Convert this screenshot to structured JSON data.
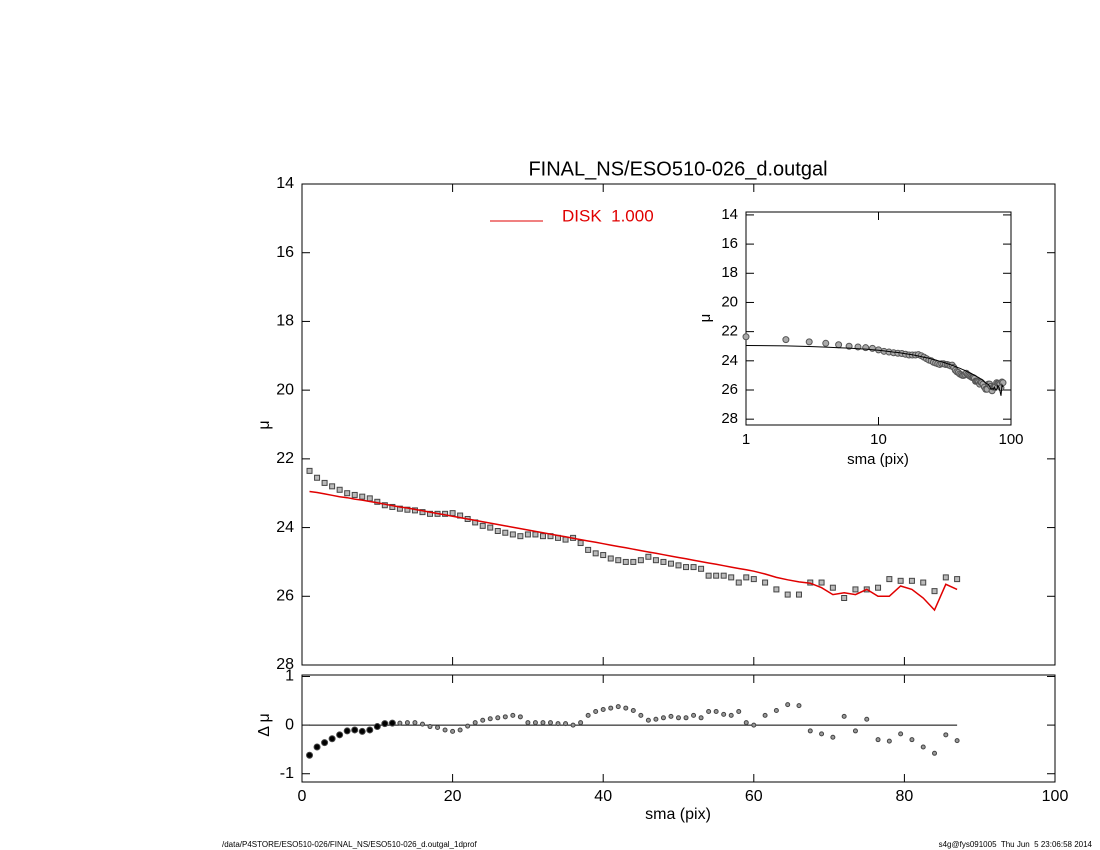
{
  "chart_data": [
    {
      "type": "profile",
      "title": "FINAL_NS/ESO510-026_d.outgal",
      "ylabel": "μ",
      "xlim": [
        0,
        100
      ],
      "xticks": [
        0,
        20,
        40,
        60,
        80,
        100
      ],
      "ylim": [
        28,
        14
      ],
      "yticks": [
        14,
        16,
        18,
        20,
        22,
        24,
        26,
        28
      ],
      "x": [
        1,
        2,
        3,
        4,
        5,
        6,
        7,
        8,
        9,
        10,
        11,
        12,
        13,
        14,
        15,
        16,
        17,
        18,
        19,
        20,
        21,
        22,
        23,
        24,
        25,
        26,
        27,
        28,
        29,
        30,
        31,
        32,
        33,
        34,
        35,
        36,
        37,
        38,
        39,
        40,
        41,
        42,
        43,
        44,
        45,
        46,
        47,
        48,
        49,
        50,
        51,
        52,
        53,
        54,
        55,
        56,
        57,
        58,
        59,
        60,
        61.5,
        63,
        64.5,
        66,
        67.5,
        69,
        70.5,
        72,
        73.5,
        75,
        76.5,
        78,
        79.5,
        81,
        82.5,
        84,
        85.5,
        87
      ],
      "series": [
        {
          "color": "#444444",
          "values": [
            22.35,
            22.55,
            22.7,
            22.8,
            22.9,
            23.0,
            23.05,
            23.1,
            23.15,
            23.25,
            23.35,
            23.4,
            23.45,
            23.48,
            23.5,
            23.55,
            23.6,
            23.6,
            23.6,
            23.58,
            23.65,
            23.75,
            23.85,
            23.95,
            24.0,
            24.1,
            24.15,
            24.2,
            24.25,
            24.2,
            24.2,
            24.25,
            24.25,
            24.3,
            24.35,
            24.3,
            24.45,
            24.65,
            24.75,
            24.8,
            24.9,
            24.95,
            25.0,
            25.0,
            24.95,
            24.85,
            24.95,
            25.0,
            25.05,
            25.1,
            25.15,
            25.15,
            25.2,
            25.4,
            25.4,
            25.4,
            25.45,
            25.6,
            25.45,
            25.5,
            25.6,
            25.8,
            25.95,
            25.95,
            25.6,
            25.6,
            25.75,
            26.05,
            25.8,
            25.8,
            25.75,
            25.5,
            25.55,
            25.55,
            25.6,
            25.85,
            25.45,
            25.5
          ]
        },
        {
          "name": "DISK  1.000",
          "color": "#e00000",
          "values": [
            22.95,
            22.98,
            23.02,
            23.06,
            23.1,
            23.13,
            23.17,
            23.2,
            23.24,
            23.28,
            23.32,
            23.36,
            23.4,
            23.43,
            23.47,
            23.51,
            23.55,
            23.59,
            23.63,
            23.67,
            23.71,
            23.75,
            23.79,
            23.83,
            23.87,
            23.91,
            23.95,
            23.99,
            24.03,
            24.07,
            24.11,
            24.15,
            24.19,
            24.23,
            24.27,
            24.31,
            24.35,
            24.39,
            24.43,
            24.47,
            24.51,
            24.55,
            24.59,
            24.63,
            24.67,
            24.71,
            24.75,
            24.79,
            24.83,
            24.87,
            24.91,
            24.95,
            24.99,
            25.03,
            25.07,
            25.11,
            25.15,
            25.19,
            25.23,
            25.27,
            25.35,
            25.45,
            25.52,
            25.58,
            25.62,
            25.75,
            25.95,
            25.9,
            25.95,
            25.8,
            26.0,
            26.0,
            25.7,
            25.8,
            26.05,
            26.4,
            25.65,
            25.8
          ]
        }
      ]
    },
    {
      "type": "residual",
      "xlabel": "sma (pix)",
      "ylabel": "Δ μ",
      "xlim": [
        0,
        100
      ],
      "xticks": [
        0,
        20,
        40,
        60,
        80,
        100
      ],
      "ylim": [
        -1.17,
        1.03
      ],
      "yticks": [
        -1,
        0,
        1
      ],
      "x": [
        1,
        2,
        3,
        4,
        5,
        6,
        7,
        8,
        9,
        10,
        11,
        12,
        13,
        14,
        15,
        16,
        17,
        18,
        19,
        20,
        21,
        22,
        23,
        24,
        25,
        26,
        27,
        28,
        29,
        30,
        31,
        32,
        33,
        34,
        35,
        36,
        37,
        38,
        39,
        40,
        41,
        42,
        43,
        44,
        45,
        46,
        47,
        48,
        49,
        50,
        51,
        52,
        53,
        54,
        55,
        56,
        57,
        58,
        59,
        60,
        61.5,
        63,
        64.5,
        66,
        67.5,
        69,
        70.5,
        72,
        73.5,
        75,
        76.5,
        78,
        79.5,
        81,
        82.5,
        84,
        85.5,
        87
      ],
      "values": [
        -0.62,
        -0.45,
        -0.36,
        -0.28,
        -0.2,
        -0.12,
        -0.1,
        -0.13,
        -0.1,
        -0.03,
        0.03,
        0.04,
        0.04,
        0.05,
        0.05,
        0.02,
        -0.03,
        -0.05,
        -0.1,
        -0.13,
        -0.1,
        -0.02,
        0.05,
        0.1,
        0.13,
        0.15,
        0.17,
        0.2,
        0.17,
        0.05,
        0.05,
        0.05,
        0.05,
        0.03,
        0.03,
        0.0,
        0.05,
        0.2,
        0.28,
        0.32,
        0.35,
        0.38,
        0.35,
        0.3,
        0.2,
        0.1,
        0.12,
        0.15,
        0.18,
        0.15,
        0.15,
        0.2,
        0.15,
        0.28,
        0.28,
        0.22,
        0.2,
        0.28,
        0.05,
        0.0,
        0.2,
        0.3,
        0.42,
        0.4,
        -0.12,
        -0.18,
        -0.25,
        0.18,
        -0.12,
        0.12,
        -0.3,
        -0.33,
        -0.18,
        -0.3,
        -0.45,
        -0.58,
        -0.2,
        -0.32
      ],
      "color": "#444444"
    },
    {
      "type": "inset",
      "xlabel": "sma (pix)",
      "ylabel": "μ",
      "xlog": true,
      "xlim": [
        1,
        100
      ],
      "xticks": [
        1,
        10,
        100
      ],
      "ylim": [
        28.4,
        13.8
      ],
      "yticks": [
        14,
        16,
        18,
        20,
        22,
        24,
        26,
        28
      ],
      "color": "#000000"
    }
  ],
  "footer": {
    "left": "/data/P4STORE/ESO510-026/FINAL_NS/ESO510-026_d.outgal_1dprof",
    "right": "s4g@fys091005  Thu Jun  5 23:06:58 2014"
  }
}
